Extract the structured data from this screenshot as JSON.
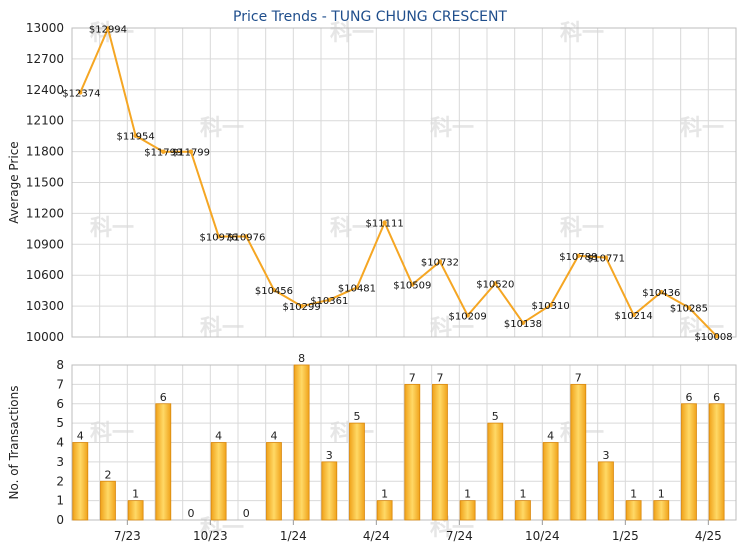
{
  "title": "Price Trends - TUNG CHUNG CRESCENT",
  "watermark_text": "科一",
  "colors": {
    "line": "#f5a623",
    "bar_light": "#ffd966",
    "bar_dark": "#f0a21a",
    "bar_edge": "#d9890f",
    "title": "#1f4e8c"
  },
  "chart_data": [
    {
      "type": "line",
      "ylabel": "Average Price",
      "ylim": [
        10000,
        13000
      ],
      "yticks": [
        10000,
        10300,
        10600,
        10900,
        11200,
        11500,
        11800,
        12100,
        12400,
        12700,
        13000
      ],
      "grid": true,
      "points": [
        {
          "x": 0.3,
          "value": 12374,
          "label": "$12374"
        },
        {
          "x": 1.3,
          "value": 12994,
          "label": "$12994"
        },
        {
          "x": 2.3,
          "value": 11954,
          "label": "$11954"
        },
        {
          "x": 3.3,
          "value": 11799,
          "label": "$11799"
        },
        {
          "x": 4.3,
          "value": 11799,
          "label": "$11799"
        },
        {
          "x": 5.3,
          "value": 10976,
          "label": "$10976"
        },
        {
          "x": 6.3,
          "value": 10976,
          "label": "$10976"
        },
        {
          "x": 7.3,
          "value": 10456,
          "label": "$10456"
        },
        {
          "x": 8.3,
          "value": 10299,
          "label": "$10299"
        },
        {
          "x": 9.3,
          "value": 10361,
          "label": "$10361"
        },
        {
          "x": 10.3,
          "value": 10481,
          "label": "$10481"
        },
        {
          "x": 11.3,
          "value": 11111,
          "label": "$11111"
        },
        {
          "x": 12.3,
          "value": 10509,
          "label": "$10509"
        },
        {
          "x": 13.3,
          "value": 10732,
          "label": "$10732"
        },
        {
          "x": 14.3,
          "value": 10209,
          "label": "$10209"
        },
        {
          "x": 15.3,
          "value": 10520,
          "label": "$10520"
        },
        {
          "x": 16.3,
          "value": 10138,
          "label": "$10138"
        },
        {
          "x": 17.3,
          "value": 10310,
          "label": "$10310"
        },
        {
          "x": 18.3,
          "value": 10788,
          "label": "$10788"
        },
        {
          "x": 19.3,
          "value": 10771,
          "label": "$10771"
        },
        {
          "x": 20.3,
          "value": 10214,
          "label": "$10214"
        },
        {
          "x": 21.3,
          "value": 10436,
          "label": "$10436"
        },
        {
          "x": 22.3,
          "value": 10285,
          "label": "$10285"
        },
        {
          "x": 23.3,
          "value": 10008,
          "label": "$10008"
        }
      ]
    },
    {
      "type": "bar",
      "ylabel": "No. of Transactions",
      "ylim": [
        0,
        8
      ],
      "yticks": [
        0,
        1,
        2,
        3,
        4,
        5,
        6,
        7,
        8
      ],
      "grid": true,
      "values": [
        4,
        2,
        1,
        6,
        0,
        4,
        0,
        4,
        8,
        3,
        5,
        1,
        7,
        7,
        1,
        5,
        1,
        4,
        7,
        3,
        1,
        1,
        6,
        6
      ],
      "xticks": [
        {
          "position": 2,
          "label": "7/23"
        },
        {
          "position": 5,
          "label": "10/23"
        },
        {
          "position": 8,
          "label": "1/24"
        },
        {
          "position": 11,
          "label": "4/24"
        },
        {
          "position": 14,
          "label": "7/24"
        },
        {
          "position": 17,
          "label": "10/24"
        },
        {
          "position": 20,
          "label": "1/25"
        },
        {
          "position": 23,
          "label": "4/25"
        }
      ]
    }
  ]
}
